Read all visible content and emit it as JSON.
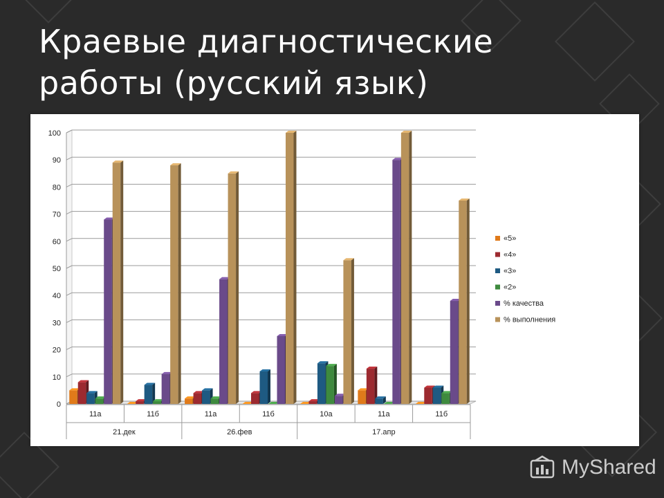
{
  "slide": {
    "title": "Краевые диагностические\nработы (русский язык)"
  },
  "watermark": {
    "text": "MyShared"
  },
  "colors": {
    "background": "#2a2a2a",
    "pattern": "#3a3a3a",
    "panel": "#ffffff"
  },
  "chart_data": {
    "type": "bar",
    "title": "",
    "xlabel": "",
    "ylabel": "",
    "ylim": [
      0,
      100
    ],
    "yticks": [
      0,
      10,
      20,
      30,
      40,
      50,
      60,
      70,
      80,
      90,
      100
    ],
    "grid": true,
    "legend_position": "right",
    "categories": [
      "11а",
      "11б",
      "11а",
      "11б",
      "10а",
      "11а",
      "11б"
    ],
    "category_groups": [
      {
        "label": "21.дек",
        "categories": [
          "11а",
          "11б"
        ]
      },
      {
        "label": "26.фев",
        "categories": [
          "11а",
          "11б"
        ]
      },
      {
        "label": "17.апр",
        "categories": [
          "10а",
          "11а",
          "11б"
        ]
      }
    ],
    "series": [
      {
        "name": "«5»",
        "color": "#e07a1a",
        "values": [
          5,
          0,
          2,
          0,
          0,
          5,
          0
        ]
      },
      {
        "name": "«4»",
        "color": "#9c2a30",
        "values": [
          8,
          1,
          4,
          4,
          1,
          13,
          6
        ]
      },
      {
        "name": "«3»",
        "color": "#1e5a82",
        "values": [
          4,
          7,
          5,
          12,
          15,
          2,
          6
        ]
      },
      {
        "name": "«2»",
        "color": "#3e8a3e",
        "values": [
          2,
          1,
          2,
          0,
          14,
          0,
          4
        ]
      },
      {
        "name": "% качества",
        "color": "#6a4a8a",
        "values": [
          68,
          11,
          46,
          25,
          3,
          90,
          38
        ]
      },
      {
        "name": "% выполнения",
        "color": "#b8925a",
        "values": [
          89,
          88,
          85,
          100,
          53,
          100,
          75
        ]
      }
    ]
  }
}
